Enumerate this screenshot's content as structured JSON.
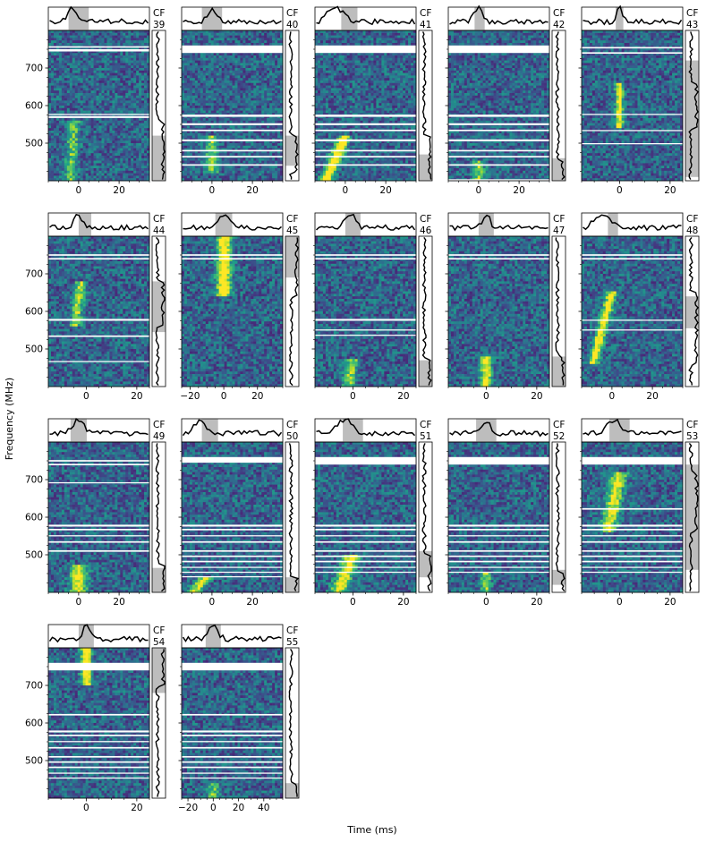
{
  "figure": {
    "ylabel": "Frequency (MHz)",
    "xlabel": "Time (ms)",
    "panel_prefix": "CF",
    "colormap": "viridis",
    "profile_color": "#000000",
    "shade_color": "#bdbdbd",
    "flag_color": "#ffffff"
  },
  "chart_data": [
    {
      "type": "heatmap",
      "panel": "39",
      "label": "39",
      "xlim": [
        -15,
        35
      ],
      "xticks": [
        0,
        20
      ],
      "ylim": [
        400,
        800
      ],
      "yticks": [
        500,
        600,
        700
      ],
      "burst": {
        "t0": -2,
        "f_top": 560,
        "f_bottom": 400,
        "drift_ms_per_100MHz": -1.5,
        "width_ms": 3,
        "peak": 0.5
      },
      "flagged_mhz": [
        [
          744,
          750
        ],
        [
          754,
          758
        ],
        [
          567,
          572
        ],
        [
          575,
          578
        ]
      ],
      "time_window_ms": [
        -5,
        5
      ],
      "freq_window_mhz": [
        400,
        520
      ]
    },
    {
      "type": "heatmap",
      "panel": "40",
      "label": "40",
      "xlim": [
        -15,
        35
      ],
      "xticks": [
        0,
        20
      ],
      "ylim": [
        400,
        800
      ],
      "yticks": [
        500,
        600,
        700
      ],
      "burst": {
        "t0": 0,
        "f_top": 520,
        "f_bottom": 420,
        "drift_ms_per_100MHz": 0,
        "width_ms": 3,
        "peak": 0.6
      },
      "flagged_mhz": [
        [
          740,
          760
        ],
        [
          570,
          576
        ],
        [
          548,
          553
        ],
        [
          532,
          536
        ],
        [
          505,
          510
        ],
        [
          478,
          482
        ],
        [
          462,
          466
        ],
        [
          440,
          444
        ]
      ],
      "time_window_ms": [
        -5,
        5
      ],
      "freq_window_mhz": [
        440,
        520
      ]
    },
    {
      "type": "heatmap",
      "panel": "41",
      "label": "41",
      "xlim": [
        -15,
        35
      ],
      "xticks": [
        0,
        20
      ],
      "ylim": [
        400,
        800
      ],
      "yticks": [
        500,
        600,
        700
      ],
      "burst": {
        "t0": 0,
        "f_top": 520,
        "f_bottom": 400,
        "drift_ms_per_100MHz": -8,
        "width_ms": 3,
        "peak": 1
      },
      "flagged_mhz": [
        [
          740,
          760
        ],
        [
          570,
          576
        ],
        [
          548,
          553
        ],
        [
          532,
          536
        ],
        [
          505,
          510
        ],
        [
          478,
          482
        ],
        [
          462,
          466
        ],
        [
          440,
          444
        ]
      ],
      "time_window_ms": [
        -2,
        6
      ],
      "freq_window_mhz": [
        400,
        470
      ]
    },
    {
      "type": "heatmap",
      "panel": "42",
      "label": "42",
      "xlim": [
        -15,
        35
      ],
      "xticks": [
        0,
        20
      ],
      "ylim": [
        400,
        800
      ],
      "yticks": [
        500,
        600,
        700
      ],
      "burst": {
        "t0": 0,
        "f_top": 450,
        "f_bottom": 400,
        "drift_ms_per_100MHz": 0,
        "width_ms": 3,
        "peak": 0.6
      },
      "flagged_mhz": [
        [
          740,
          760
        ],
        [
          570,
          576
        ],
        [
          548,
          553
        ],
        [
          532,
          536
        ],
        [
          505,
          510
        ],
        [
          478,
          482
        ],
        [
          462,
          466
        ],
        [
          440,
          444
        ],
        [
          400,
          404
        ]
      ],
      "time_window_ms": [
        -2,
        3
      ],
      "freq_window_mhz": [
        400,
        460
      ]
    },
    {
      "type": "heatmap",
      "panel": "43",
      "label": "43",
      "xlim": [
        -15,
        25
      ],
      "xticks": [
        0,
        20
      ],
      "ylim": [
        400,
        800
      ],
      "yticks": [
        500,
        600,
        700
      ],
      "burst": {
        "t0": 0,
        "f_top": 660,
        "f_bottom": 540,
        "drift_ms_per_100MHz": 0,
        "width_ms": 1.5,
        "peak": 0.9
      },
      "flagged_mhz": [
        [
          752,
          756
        ],
        [
          738,
          742
        ],
        [
          575,
          578
        ],
        [
          532,
          535
        ],
        [
          497,
          500
        ]
      ],
      "time_window_ms": [
        -1.5,
        1.5
      ],
      "freq_window_mhz": [
        410,
        720
      ]
    },
    {
      "type": "heatmap",
      "panel": "44",
      "label": "44",
      "xlim": [
        -15,
        25
      ],
      "xticks": [
        0,
        20
      ],
      "ylim": [
        400,
        800
      ],
      "yticks": [
        500,
        600,
        700
      ],
      "burst": {
        "t0": -2,
        "f_top": 680,
        "f_bottom": 560,
        "drift_ms_per_100MHz": -2,
        "width_ms": 2,
        "peak": 0.7
      },
      "flagged_mhz": [
        [
          748,
          752
        ],
        [
          738,
          742
        ],
        [
          575,
          580
        ],
        [
          532,
          536
        ],
        [
          465,
          468
        ]
      ],
      "time_window_ms": [
        -3,
        2
      ],
      "freq_window_mhz": [
        545,
        680
      ]
    },
    {
      "type": "heatmap",
      "panel": "45",
      "label": "45",
      "xlim": [
        -25,
        35
      ],
      "xticks": [
        -20,
        0,
        20
      ],
      "ylim": [
        400,
        800
      ],
      "yticks": [
        500,
        600,
        700
      ],
      "burst": {
        "t0": 0,
        "f_top": 800,
        "f_bottom": 640,
        "drift_ms_per_100MHz": 0,
        "width_ms": 4,
        "peak": 1
      },
      "flagged_mhz": [
        [
          748,
          752
        ],
        [
          738,
          742
        ]
      ],
      "time_window_ms": [
        -5,
        5
      ],
      "freq_window_mhz": [
        690,
        800
      ]
    },
    {
      "type": "heatmap",
      "panel": "46",
      "label": "46",
      "xlim": [
        -15,
        25
      ],
      "xticks": [
        0,
        20
      ],
      "ylim": [
        400,
        800
      ],
      "yticks": [
        500,
        600,
        700
      ],
      "burst": {
        "t0": 0,
        "f_top": 470,
        "f_bottom": 400,
        "drift_ms_per_100MHz": -3,
        "width_ms": 2.5,
        "peak": 0.6
      },
      "flagged_mhz": [
        [
          748,
          752
        ],
        [
          738,
          742
        ],
        [
          575,
          580
        ],
        [
          549,
          552
        ],
        [
          535,
          538
        ]
      ],
      "time_window_ms": [
        -3,
        3
      ],
      "freq_window_mhz": [
        400,
        470
      ]
    },
    {
      "type": "heatmap",
      "panel": "47",
      "label": "47",
      "xlim": [
        -15,
        25
      ],
      "xticks": [
        0,
        20
      ],
      "ylim": [
        400,
        800
      ],
      "yticks": [
        500,
        600,
        700
      ],
      "burst": {
        "t0": 0,
        "f_top": 480,
        "f_bottom": 400,
        "drift_ms_per_100MHz": 0,
        "width_ms": 2,
        "peak": 0.9
      },
      "flagged_mhz": [
        [
          748,
          752
        ],
        [
          738,
          742
        ]
      ],
      "time_window_ms": [
        -3,
        3
      ],
      "freq_window_mhz": [
        400,
        480
      ]
    },
    {
      "type": "heatmap",
      "panel": "48",
      "label": "48",
      "xlim": [
        -15,
        35
      ],
      "xticks": [
        0,
        20
      ],
      "ylim": [
        400,
        800
      ],
      "yticks": [
        500,
        600,
        700
      ],
      "burst": {
        "t0": 0,
        "f_top": 650,
        "f_bottom": 460,
        "drift_ms_per_100MHz": -5,
        "width_ms": 2.5,
        "peak": 0.9
      },
      "flagged_mhz": [
        [
          748,
          752
        ],
        [
          738,
          742
        ],
        [
          575,
          578
        ],
        [
          549,
          552
        ]
      ],
      "time_window_ms": [
        -2,
        3
      ],
      "freq_window_mhz": [
        555,
        640
      ]
    },
    {
      "type": "heatmap",
      "panel": "49",
      "label": "49",
      "xlim": [
        -15,
        35
      ],
      "xticks": [
        0,
        20
      ],
      "ylim": [
        400,
        800
      ],
      "yticks": [
        500,
        600,
        700
      ],
      "burst": {
        "t0": 0,
        "f_top": 470,
        "f_bottom": 400,
        "drift_ms_per_100MHz": 0,
        "width_ms": 4,
        "peak": 0.8
      },
      "flagged_mhz": [
        [
          748,
          752
        ],
        [
          738,
          742
        ],
        [
          690,
          693
        ],
        [
          575,
          580
        ],
        [
          565,
          569
        ],
        [
          549,
          552
        ],
        [
          532,
          536
        ],
        [
          508,
          512
        ]
      ],
      "time_window_ms": [
        -4,
        4
      ],
      "freq_window_mhz": [
        400,
        465
      ]
    },
    {
      "type": "heatmap",
      "panel": "50",
      "label": "50",
      "xlim": [
        -15,
        35
      ],
      "xticks": [
        0,
        20
      ],
      "ylim": [
        400,
        800
      ],
      "yticks": [
        500,
        600,
        700
      ],
      "burst": {
        "t0": -3,
        "f_top": 440,
        "f_bottom": 400,
        "drift_ms_per_100MHz": -15,
        "width_ms": 3,
        "peak": 0.8
      },
      "flagged_mhz": [
        [
          745,
          760
        ],
        [
          575,
          580
        ],
        [
          565,
          569
        ],
        [
          549,
          552
        ],
        [
          532,
          536
        ],
        [
          508,
          512
        ],
        [
          494,
          498
        ],
        [
          480,
          484
        ],
        [
          465,
          468
        ],
        [
          452,
          455
        ],
        [
          440,
          443
        ]
      ],
      "time_window_ms": [
        -5,
        3
      ],
      "freq_window_mhz": [
        400,
        440
      ]
    },
    {
      "type": "heatmap",
      "panel": "51",
      "label": "51",
      "xlim": [
        -15,
        25
      ],
      "xticks": [
        0,
        20
      ],
      "ylim": [
        400,
        800
      ],
      "yticks": [
        500,
        600,
        700
      ],
      "burst": {
        "t0": 0,
        "f_top": 500,
        "f_bottom": 400,
        "drift_ms_per_100MHz": -6,
        "width_ms": 3,
        "peak": 0.9
      },
      "flagged_mhz": [
        [
          740,
          760
        ],
        [
          575,
          580
        ],
        [
          565,
          569
        ],
        [
          549,
          552
        ],
        [
          532,
          536
        ],
        [
          508,
          512
        ],
        [
          494,
          498
        ],
        [
          480,
          484
        ],
        [
          465,
          468
        ],
        [
          452,
          455
        ]
      ],
      "time_window_ms": [
        -4,
        4
      ],
      "freq_window_mhz": [
        440,
        510
      ]
    },
    {
      "type": "heatmap",
      "panel": "52",
      "label": "52",
      "xlim": [
        -15,
        25
      ],
      "xticks": [
        0,
        20
      ],
      "ylim": [
        400,
        800
      ],
      "yticks": [
        500,
        600,
        700
      ],
      "burst": {
        "t0": 0,
        "f_top": 450,
        "f_bottom": 400,
        "drift_ms_per_100MHz": 0,
        "width_ms": 2,
        "peak": 0.6
      },
      "flagged_mhz": [
        [
          740,
          760
        ],
        [
          575,
          580
        ],
        [
          565,
          569
        ],
        [
          549,
          552
        ],
        [
          532,
          536
        ],
        [
          508,
          512
        ],
        [
          494,
          498
        ],
        [
          480,
          484
        ],
        [
          465,
          468
        ],
        [
          452,
          455
        ]
      ],
      "time_window_ms": [
        -4,
        4
      ],
      "freq_window_mhz": [
        420,
        460
      ]
    },
    {
      "type": "heatmap",
      "panel": "53",
      "label": "53",
      "xlim": [
        -15,
        25
      ],
      "xticks": [
        0,
        20
      ],
      "ylim": [
        400,
        800
      ],
      "yticks": [
        500,
        600,
        700
      ],
      "burst": {
        "t0": 0,
        "f_top": 720,
        "f_bottom": 560,
        "drift_ms_per_100MHz": -3,
        "width_ms": 3,
        "peak": 0.8
      },
      "flagged_mhz": [
        [
          740,
          760
        ],
        [
          620,
          624
        ],
        [
          575,
          580
        ],
        [
          565,
          569
        ],
        [
          549,
          552
        ],
        [
          532,
          536
        ],
        [
          508,
          512
        ],
        [
          494,
          498
        ],
        [
          480,
          484
        ],
        [
          465,
          468
        ],
        [
          452,
          455
        ]
      ],
      "time_window_ms": [
        -4,
        4
      ],
      "freq_window_mhz": [
        460,
        740
      ]
    },
    {
      "type": "heatmap",
      "panel": "54",
      "label": "54",
      "xlim": [
        -15,
        25
      ],
      "xticks": [
        0,
        20
      ],
      "ylim": [
        400,
        800
      ],
      "yticks": [
        500,
        600,
        700
      ],
      "burst": {
        "t0": 0,
        "f_top": 800,
        "f_bottom": 700,
        "drift_ms_per_100MHz": 0,
        "width_ms": 2,
        "peak": 1
      },
      "flagged_mhz": [
        [
          740,
          760
        ],
        [
          620,
          624
        ],
        [
          575,
          580
        ],
        [
          565,
          569
        ],
        [
          549,
          552
        ],
        [
          532,
          536
        ],
        [
          508,
          512
        ],
        [
          494,
          498
        ],
        [
          480,
          484
        ],
        [
          465,
          468
        ],
        [
          452,
          455
        ]
      ],
      "time_window_ms": [
        -3,
        3
      ],
      "freq_window_mhz": [
        680,
        800
      ]
    },
    {
      "type": "heatmap",
      "panel": "55",
      "label": "55",
      "xlim": [
        -25,
        55
      ],
      "xticks": [
        -20,
        0,
        20,
        40
      ],
      "ylim": [
        400,
        800
      ],
      "yticks": [
        500,
        600,
        700
      ],
      "burst": {
        "t0": 0,
        "f_top": 440,
        "f_bottom": 400,
        "drift_ms_per_100MHz": 0,
        "width_ms": 5,
        "peak": 0.5
      },
      "flagged_mhz": [
        [
          740,
          760
        ],
        [
          620,
          624
        ],
        [
          575,
          580
        ],
        [
          565,
          569
        ],
        [
          549,
          552
        ],
        [
          532,
          536
        ],
        [
          508,
          512
        ],
        [
          494,
          498
        ],
        [
          480,
          484
        ],
        [
          465,
          468
        ],
        [
          452,
          455
        ]
      ],
      "time_window_ms": [
        -6,
        6
      ],
      "freq_window_mhz": [
        400,
        440
      ]
    }
  ]
}
